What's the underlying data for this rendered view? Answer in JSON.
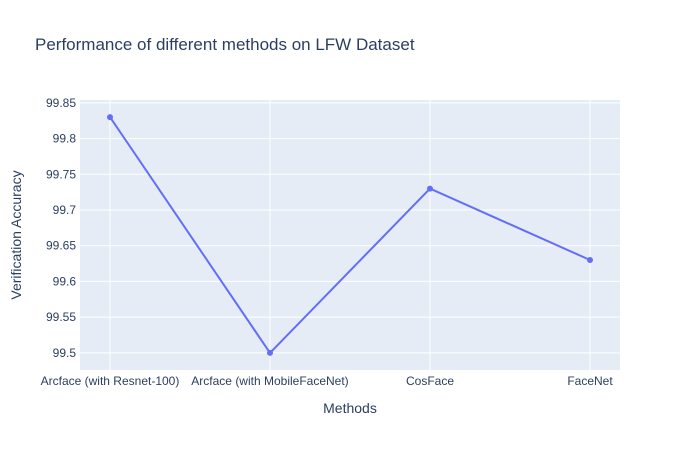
{
  "chart_data": {
    "type": "line",
    "title": "Performance of different methods on LFW Dataset",
    "xlabel": "Methods",
    "ylabel": "Verification Accuracy",
    "categories": [
      "Arcface (with Resnet-100)",
      "Arcface (with MobileFaceNet)",
      "CosFace",
      "FaceNet"
    ],
    "values": [
      99.83,
      99.5,
      99.73,
      99.63
    ],
    "ylim": [
      99.476,
      99.854
    ],
    "yticks": [
      99.5,
      99.55,
      99.6,
      99.65,
      99.7,
      99.75,
      99.8,
      99.85
    ],
    "ytick_labels": [
      "99.5",
      "99.55",
      "99.6",
      "99.65",
      "99.7",
      "99.75",
      "99.8",
      "99.85"
    ],
    "grid": true,
    "legend": "none",
    "colors": {
      "line": "#636efa",
      "plot_bg": "#e5ecf6",
      "grid": "#ffffff",
      "text": "#2a3f5f"
    }
  }
}
